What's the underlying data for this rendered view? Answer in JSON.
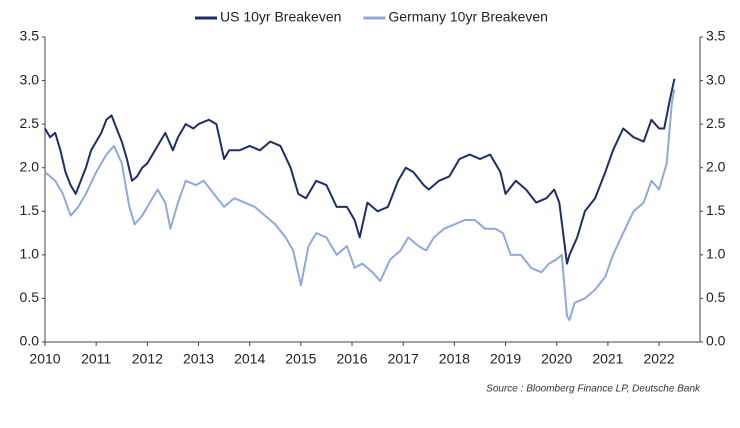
{
  "chart_data": {
    "type": "line",
    "source": "Source : Bloomberg Finance LP, Deutsche Bank",
    "xlim": [
      2010,
      2022.8
    ],
    "xticks": [
      2010,
      2011,
      2012,
      2013,
      2014,
      2015,
      2016,
      2017,
      2018,
      2019,
      2020,
      2021,
      2022
    ],
    "ylim": [
      0,
      3.5
    ],
    "yticks": [
      {
        "value": 0,
        "label": "0.0"
      },
      0.5,
      {
        "value": 1,
        "label": "1.0"
      },
      1.5,
      {
        "value": 2,
        "label": "2.0"
      },
      2.5,
      {
        "value": 3,
        "label": "3.0"
      },
      3.5
    ],
    "y2lim": [
      0,
      3.5
    ],
    "y2ticks": [
      {
        "value": 0,
        "label": "0.0"
      },
      0.5,
      {
        "value": 1,
        "label": "1.0"
      },
      1.5,
      {
        "value": 2,
        "label": "2.0"
      },
      2.5,
      {
        "value": 3,
        "label": "3.0"
      },
      3.5
    ],
    "legend": "top",
    "series": [
      {
        "name": "US 10yr Breakeven",
        "color": "#1f2d6b",
        "x": [
          2010.0,
          2010.1,
          2010.2,
          2010.3,
          2010.4,
          2010.5,
          2010.6,
          2010.7,
          2010.8,
          2010.9,
          2011.0,
          2011.1,
          2011.2,
          2011.3,
          2011.4,
          2011.5,
          2011.6,
          2011.7,
          2011.8,
          2011.9,
          2012.0,
          2012.2,
          2012.35,
          2012.5,
          2012.6,
          2012.75,
          2012.9,
          2013.0,
          2013.2,
          2013.35,
          2013.5,
          2013.6,
          2013.8,
          2014.0,
          2014.2,
          2014.4,
          2014.6,
          2014.8,
          2014.95,
          2015.1,
          2015.3,
          2015.5,
          2015.7,
          2015.9,
          2016.05,
          2016.15,
          2016.3,
          2016.5,
          2016.7,
          2016.9,
          2017.05,
          2017.2,
          2017.4,
          2017.5,
          2017.7,
          2017.9,
          2018.1,
          2018.3,
          2018.5,
          2018.7,
          2018.9,
          2019.0,
          2019.2,
          2019.4,
          2019.6,
          2019.8,
          2019.95,
          2020.05,
          2020.2,
          2020.25,
          2020.4,
          2020.55,
          2020.75,
          2020.95,
          2021.1,
          2021.3,
          2021.5,
          2021.7,
          2021.85,
          2022.0,
          2022.1,
          2022.2,
          2022.3
        ],
        "values": [
          2.45,
          2.35,
          2.4,
          2.2,
          1.95,
          1.8,
          1.7,
          1.85,
          2.0,
          2.2,
          2.3,
          2.4,
          2.55,
          2.6,
          2.45,
          2.3,
          2.1,
          1.85,
          1.9,
          2.0,
          2.05,
          2.25,
          2.4,
          2.2,
          2.35,
          2.5,
          2.45,
          2.5,
          2.55,
          2.5,
          2.1,
          2.2,
          2.2,
          2.25,
          2.2,
          2.3,
          2.25,
          2.0,
          1.7,
          1.65,
          1.85,
          1.8,
          1.55,
          1.55,
          1.4,
          1.2,
          1.6,
          1.5,
          1.55,
          1.85,
          2.0,
          1.95,
          1.8,
          1.75,
          1.85,
          1.9,
          2.1,
          2.15,
          2.1,
          2.15,
          1.95,
          1.7,
          1.85,
          1.75,
          1.6,
          1.65,
          1.75,
          1.6,
          0.9,
          1.0,
          1.2,
          1.5,
          1.65,
          1.95,
          2.2,
          2.45,
          2.35,
          2.3,
          2.55,
          2.45,
          2.45,
          2.75,
          3.02
        ]
      },
      {
        "name": "Germany 10yr Breakeven",
        "color": "#8fa9dc",
        "x": [
          2010.0,
          2010.2,
          2010.35,
          2010.5,
          2010.65,
          2010.8,
          2011.0,
          2011.2,
          2011.35,
          2011.5,
          2011.65,
          2011.75,
          2011.9,
          2012.0,
          2012.2,
          2012.35,
          2012.45,
          2012.6,
          2012.75,
          2012.95,
          2013.1,
          2013.3,
          2013.5,
          2013.7,
          2013.9,
          2014.1,
          2014.3,
          2014.5,
          2014.7,
          2014.85,
          2015.0,
          2015.15,
          2015.3,
          2015.5,
          2015.7,
          2015.9,
          2016.05,
          2016.2,
          2016.4,
          2016.55,
          2016.75,
          2016.95,
          2017.1,
          2017.3,
          2017.45,
          2017.6,
          2017.8,
          2018.0,
          2018.2,
          2018.4,
          2018.6,
          2018.8,
          2018.95,
          2019.1,
          2019.3,
          2019.5,
          2019.7,
          2019.85,
          2020.0,
          2020.1,
          2020.2,
          2020.25,
          2020.35,
          2020.55,
          2020.75,
          2020.95,
          2021.1,
          2021.3,
          2021.5,
          2021.7,
          2021.85,
          2022.0,
          2022.15,
          2022.25,
          2022.3
        ],
        "values": [
          1.95,
          1.85,
          1.7,
          1.45,
          1.55,
          1.7,
          1.95,
          2.15,
          2.25,
          2.05,
          1.55,
          1.35,
          1.45,
          1.55,
          1.75,
          1.6,
          1.3,
          1.6,
          1.85,
          1.8,
          1.85,
          1.7,
          1.55,
          1.65,
          1.6,
          1.55,
          1.45,
          1.35,
          1.2,
          1.05,
          0.65,
          1.1,
          1.25,
          1.2,
          1.0,
          1.1,
          0.85,
          0.9,
          0.8,
          0.7,
          0.95,
          1.05,
          1.2,
          1.1,
          1.05,
          1.2,
          1.3,
          1.35,
          1.4,
          1.4,
          1.3,
          1.3,
          1.25,
          1.0,
          1.0,
          0.85,
          0.8,
          0.9,
          0.95,
          1.0,
          0.3,
          0.25,
          0.45,
          0.5,
          0.6,
          0.75,
          1.0,
          1.25,
          1.5,
          1.6,
          1.85,
          1.75,
          2.05,
          2.75,
          2.9
        ]
      }
    ]
  }
}
